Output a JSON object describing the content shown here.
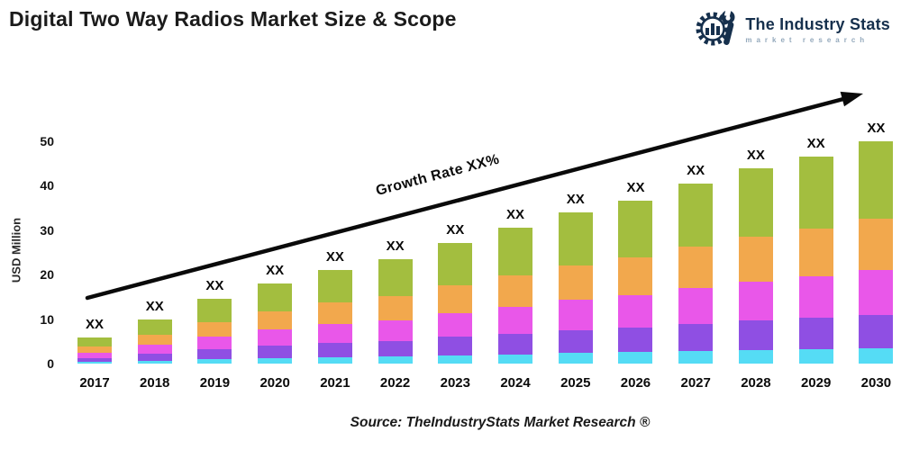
{
  "header": {
    "title": "Digital Two Way Radios Market Size & Scope",
    "logo": {
      "brand": "The Industry Stats",
      "tagline": "market research",
      "color": "#16304d"
    }
  },
  "chart_data": {
    "type": "bar",
    "stacked": true,
    "ylabel": "USD Million",
    "ylim": [
      0,
      50
    ],
    "yticks": [
      0,
      10,
      20,
      30,
      40,
      50
    ],
    "grid": false,
    "legend": "none",
    "categories": [
      "2017",
      "2018",
      "2019",
      "2020",
      "2021",
      "2022",
      "2023",
      "2024",
      "2025",
      "2026",
      "2027",
      "2028",
      "2029",
      "2030"
    ],
    "totals_estimated": [
      5.8,
      10,
      14.5,
      18,
      21,
      23.5,
      27,
      30.5,
      34,
      36.5,
      40.5,
      44,
      46.5,
      50
    ],
    "bar_value_label": "XX",
    "series": [
      {
        "name": "segment-cyan",
        "color": "#55DCF5",
        "values": [
          0.4,
          0.7,
          1.0,
          1.3,
          1.5,
          1.6,
          1.9,
          2.1,
          2.4,
          2.6,
          2.8,
          3.1,
          3.3,
          3.5
        ]
      },
      {
        "name": "segment-purple",
        "color": "#8F4FE3",
        "values": [
          0.9,
          1.5,
          2.2,
          2.7,
          3.2,
          3.5,
          4.1,
          4.6,
          5.1,
          5.5,
          6.1,
          6.6,
          7.0,
          7.5
        ]
      },
      {
        "name": "segment-magenta",
        "color": "#E957E9",
        "values": [
          1.2,
          2.0,
          2.9,
          3.6,
          4.2,
          4.7,
          5.4,
          6.1,
          6.8,
          7.3,
          8.1,
          8.8,
          9.3,
          10.0
        ]
      },
      {
        "name": "segment-orange",
        "color": "#F2A84D",
        "values": [
          1.3,
          2.3,
          3.3,
          4.1,
          4.8,
          5.4,
          6.2,
          7.0,
          7.8,
          8.4,
          9.3,
          10.1,
          10.7,
          11.5
        ]
      },
      {
        "name": "segment-green",
        "color": "#A3BE3F",
        "values": [
          2.0,
          3.5,
          5.1,
          6.3,
          7.4,
          8.2,
          9.5,
          10.7,
          11.9,
          12.8,
          14.2,
          15.4,
          16.3,
          17.5
        ]
      }
    ],
    "annotation": {
      "trend_label": "Growth Rate XX%",
      "trend_arrow": "up-right",
      "arrow_color": "#0a0a0a"
    }
  },
  "footer": {
    "source": "Source: TheIndustryStats Market Research ®"
  }
}
